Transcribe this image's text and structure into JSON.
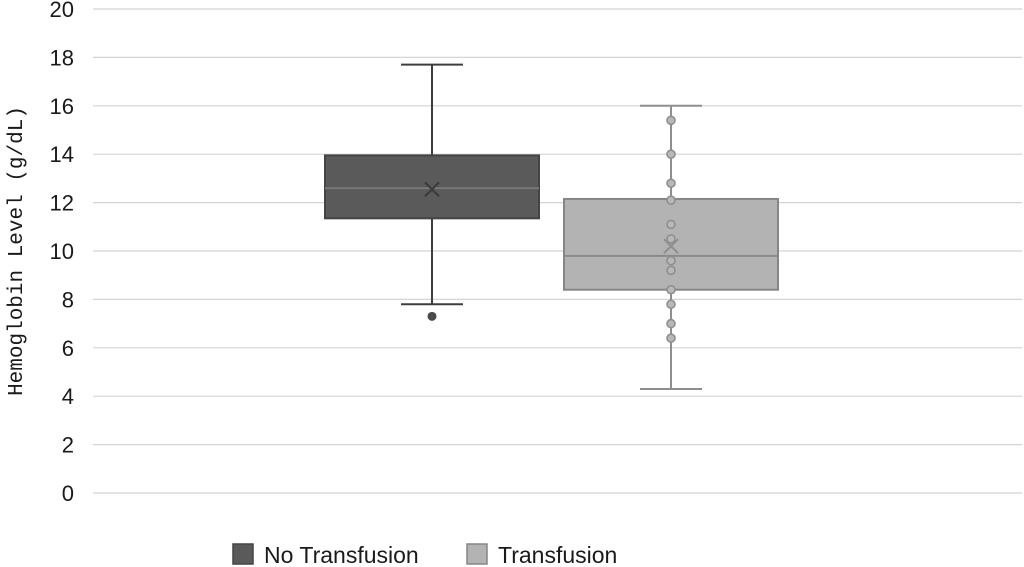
{
  "chart_data": {
    "type": "box",
    "ylabel": "Hemoglobin Level (g/dL)",
    "ylim": [
      0,
      20
    ],
    "yticks": [
      0,
      2,
      4,
      6,
      8,
      10,
      12,
      14,
      16,
      18,
      20
    ],
    "grid": true,
    "legend_position": "bottom",
    "series": [
      {
        "name": "No Transfusion",
        "color": "#5a5a5a",
        "min": 7.8,
        "q1": 11.35,
        "median": 12.6,
        "q3": 13.95,
        "max": 17.7,
        "mean": 12.55,
        "points": [
          7.3
        ]
      },
      {
        "name": "Transfusion",
        "color": "#b3b3b3",
        "min": 4.3,
        "q1": 8.4,
        "median": 9.8,
        "q3": 12.15,
        "max": 16.0,
        "mean": 10.2,
        "points": [
          15.4,
          14.0,
          12.8,
          12.1,
          11.1,
          10.5,
          9.6,
          9.2,
          8.4,
          7.8,
          7.0,
          6.4
        ]
      }
    ]
  }
}
